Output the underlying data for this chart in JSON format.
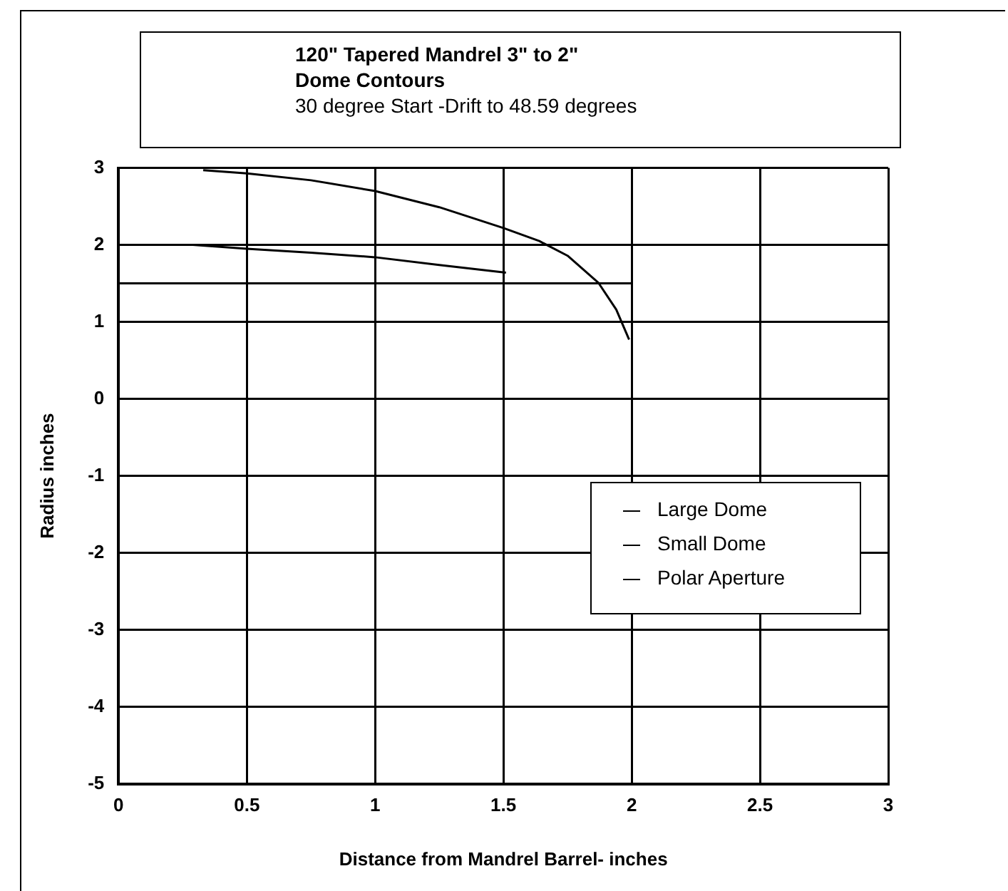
{
  "chart_data": {
    "type": "line",
    "title": "120\" Tapered Mandrel 3\" to 2\"",
    "subtitle": "Dome Contours",
    "annotations": [
      "30 degree Start  -Drift to 48.59 degrees"
    ],
    "xlabel": "Distance from Mandrel Barrel- inches",
    "ylabel": "Radius inches",
    "xlim": [
      0,
      3
    ],
    "xticks": [
      0,
      0.5,
      1,
      1.5,
      2,
      2.5,
      3
    ],
    "ylim": [
      -5,
      3
    ],
    "yticks": [
      -5,
      -4,
      -3,
      -2,
      -1,
      0,
      1,
      2,
      3
    ],
    "grid": true,
    "legend": "right",
    "marker": "none",
    "series": [
      {
        "name": "Large Dome",
        "color": "#000000",
        "x": [
          0.33,
          0.5,
          0.75,
          1,
          1.25,
          1.5,
          1.64,
          1.75,
          1.87,
          1.94,
          1.99
        ],
        "values": [
          2.97,
          2.93,
          2.84,
          2.7,
          2.49,
          2.22,
          2.05,
          1.86,
          1.51,
          1.16,
          0.77
        ]
      },
      {
        "name": "Small Dome",
        "color": "#000000",
        "x": [
          0.29,
          0.5,
          0.75,
          1,
          1.25,
          1.51
        ],
        "values": [
          2.0,
          1.95,
          1.9,
          1.84,
          1.74,
          1.64
        ]
      },
      {
        "name": "Polar Aperture",
        "color": "#000000",
        "x": [
          0,
          2
        ],
        "values": [
          1.5,
          1.5
        ]
      }
    ]
  }
}
